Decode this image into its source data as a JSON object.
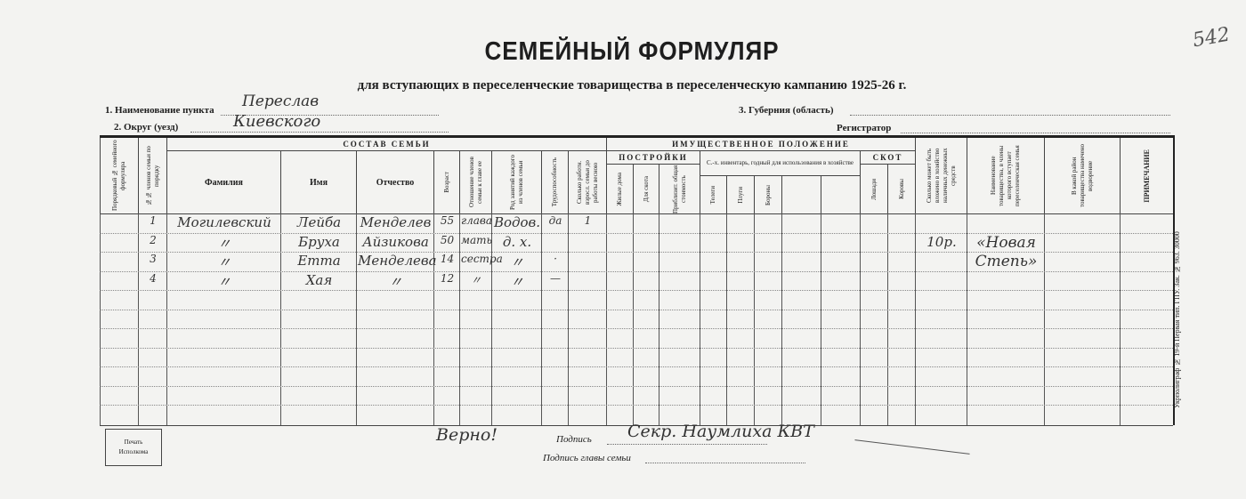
{
  "document": {
    "title": "СЕМЕЙНЫЙ ФОРМУЛЯР",
    "subtitle": "для вступающих в переселенческие товарищества в переселенческую кампанию 1925-26 г.",
    "archive_number": "542",
    "fields": {
      "punkt_label": "1. Наименование пункта",
      "punkt_value": "Переслав",
      "okrug_label": "2. Округ (уезд)",
      "okrug_value": "Киевского",
      "guberniya_label": "3. Губерния (область)",
      "guberniya_value": "",
      "registrator_label": "Регистратор",
      "registrator_value": ""
    },
    "table": {
      "group_family": "СОСТАВ СЕМЬИ",
      "group_property": "ИМУЩЕСТВЕННОЕ ПОЛОЖЕНИЕ",
      "group_buildings": "ПОСТРОЙКИ",
      "group_inventory": "С.-х. инвентарь, годный для использования в хозяйстве",
      "group_livestock": "СКОТ",
      "columns": [
        "Порядковый № семейного формуляра",
        "№№ членов семьи по порядку",
        "Фамилия",
        "Имя",
        "Отчество",
        "Возраст",
        "Отношение членов семьи к главе ее",
        "Род занятий каждого из членов семьи",
        "Трудоспособность",
        "Сколько работн. взросл. семьи до работы весною",
        "Жилые дома",
        "Для скота",
        "Приблизит. общая стоимость",
        "Телеги",
        "Плуги",
        "Бороны",
        "",
        "",
        "Лошади",
        "Коровы",
        "Сколько может быть вложено в хозяйство наличных денежных средств",
        "Наименование товарищества, в члены которого вступает переселенческая семья",
        "В какой район товарищества намечено водворение",
        "ПРИМЕЧАНИЕ"
      ],
      "rows": [
        {
          "c": [
            "",
            "1",
            "Могилевский",
            "Лейба",
            "Менделев",
            "55",
            "глава",
            "Водов.",
            "да",
            "1",
            "",
            "",
            "",
            "",
            "",
            "",
            "",
            "",
            "",
            "",
            "",
            "",
            "",
            ""
          ]
        },
        {
          "c": [
            "",
            "2",
            "〃",
            "Бруха",
            "Айзикова",
            "50",
            "мать",
            "д. х.",
            "",
            "",
            "",
            "",
            "",
            "",
            "",
            "",
            "",
            "",
            "",
            "",
            "10р.",
            "«Новая",
            "",
            ""
          ]
        },
        {
          "c": [
            "",
            "3",
            "〃",
            "Етта",
            "Менделева",
            "14",
            "сестра",
            "〃",
            "·",
            "",
            "",
            "",
            "",
            "",
            "",
            "",
            "",
            "",
            "",
            "",
            "",
            "Степь»",
            "",
            ""
          ]
        },
        {
          "c": [
            "",
            "4",
            "〃",
            "Хая",
            "〃",
            "12",
            "〃",
            "〃",
            "—",
            "",
            "",
            "",
            "",
            "",
            "",
            "",
            "",
            "",
            "",
            "",
            "",
            "",
            "",
            ""
          ]
        }
      ]
    },
    "footer": {
      "stamp_line1": "Печать",
      "stamp_line2": "Исполкома",
      "verified": "Верно!",
      "signature_label": "Подпись",
      "signature_value": "Секр. Наумлиха КВТ",
      "head_signature_label": "Подпись главы семьи",
      "printer_note": "Укрполиграф № 19-й Первая тип. ГПУ. Зак. № 963. 30000"
    }
  }
}
